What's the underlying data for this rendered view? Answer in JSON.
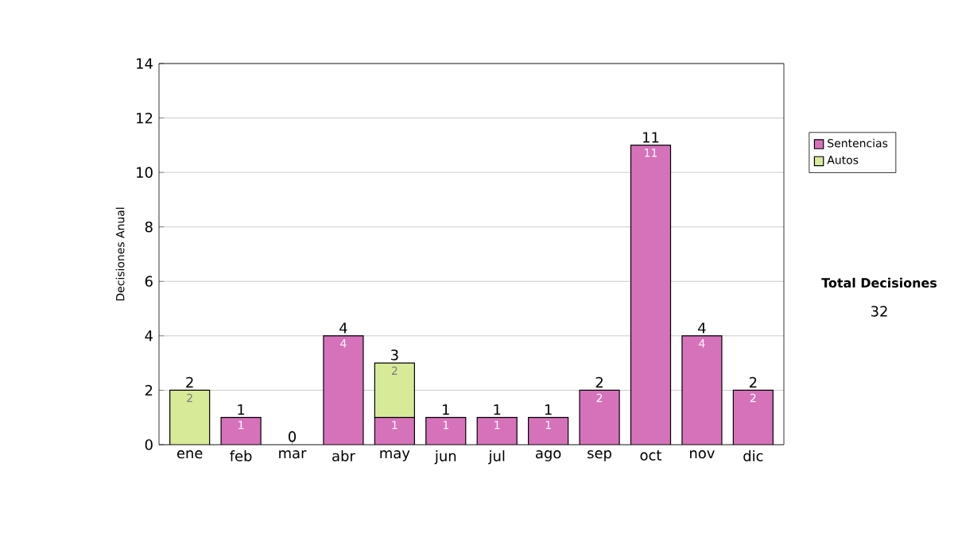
{
  "chart_data": {
    "type": "bar",
    "stacked": true,
    "ylabel": "Decisiones Anual",
    "categories": [
      "ene",
      "feb",
      "mar",
      "abr",
      "may",
      "jun",
      "jul",
      "ago",
      "sep",
      "oct",
      "nov",
      "dic"
    ],
    "series": [
      {
        "name": "Sentencias",
        "color": "#d672ba",
        "values": [
          0,
          1,
          0,
          4,
          1,
          1,
          1,
          1,
          2,
          11,
          4,
          2
        ],
        "value_labels": [
          null,
          "1",
          null,
          "4",
          "1",
          "1",
          "1",
          "1",
          "2",
          "11",
          "4",
          "2"
        ]
      },
      {
        "name": "Autos",
        "color": "#d6ea98",
        "values": [
          2,
          0,
          0,
          0,
          2,
          0,
          0,
          0,
          0,
          0,
          0,
          0
        ],
        "value_labels": [
          "2",
          null,
          null,
          null,
          "2",
          null,
          null,
          null,
          null,
          null,
          null,
          null
        ]
      }
    ],
    "totals": [
      "2",
      "1",
      "0",
      "4",
      "3",
      "1",
      "1",
      "1",
      "2",
      "11",
      "4",
      "2"
    ],
    "ylim": [
      0,
      14
    ],
    "yticks": [
      0,
      2,
      4,
      6,
      8,
      10,
      12,
      14
    ],
    "grid": "y",
    "legend": "right",
    "annotations": [
      "Total Decisiones",
      "32"
    ]
  }
}
